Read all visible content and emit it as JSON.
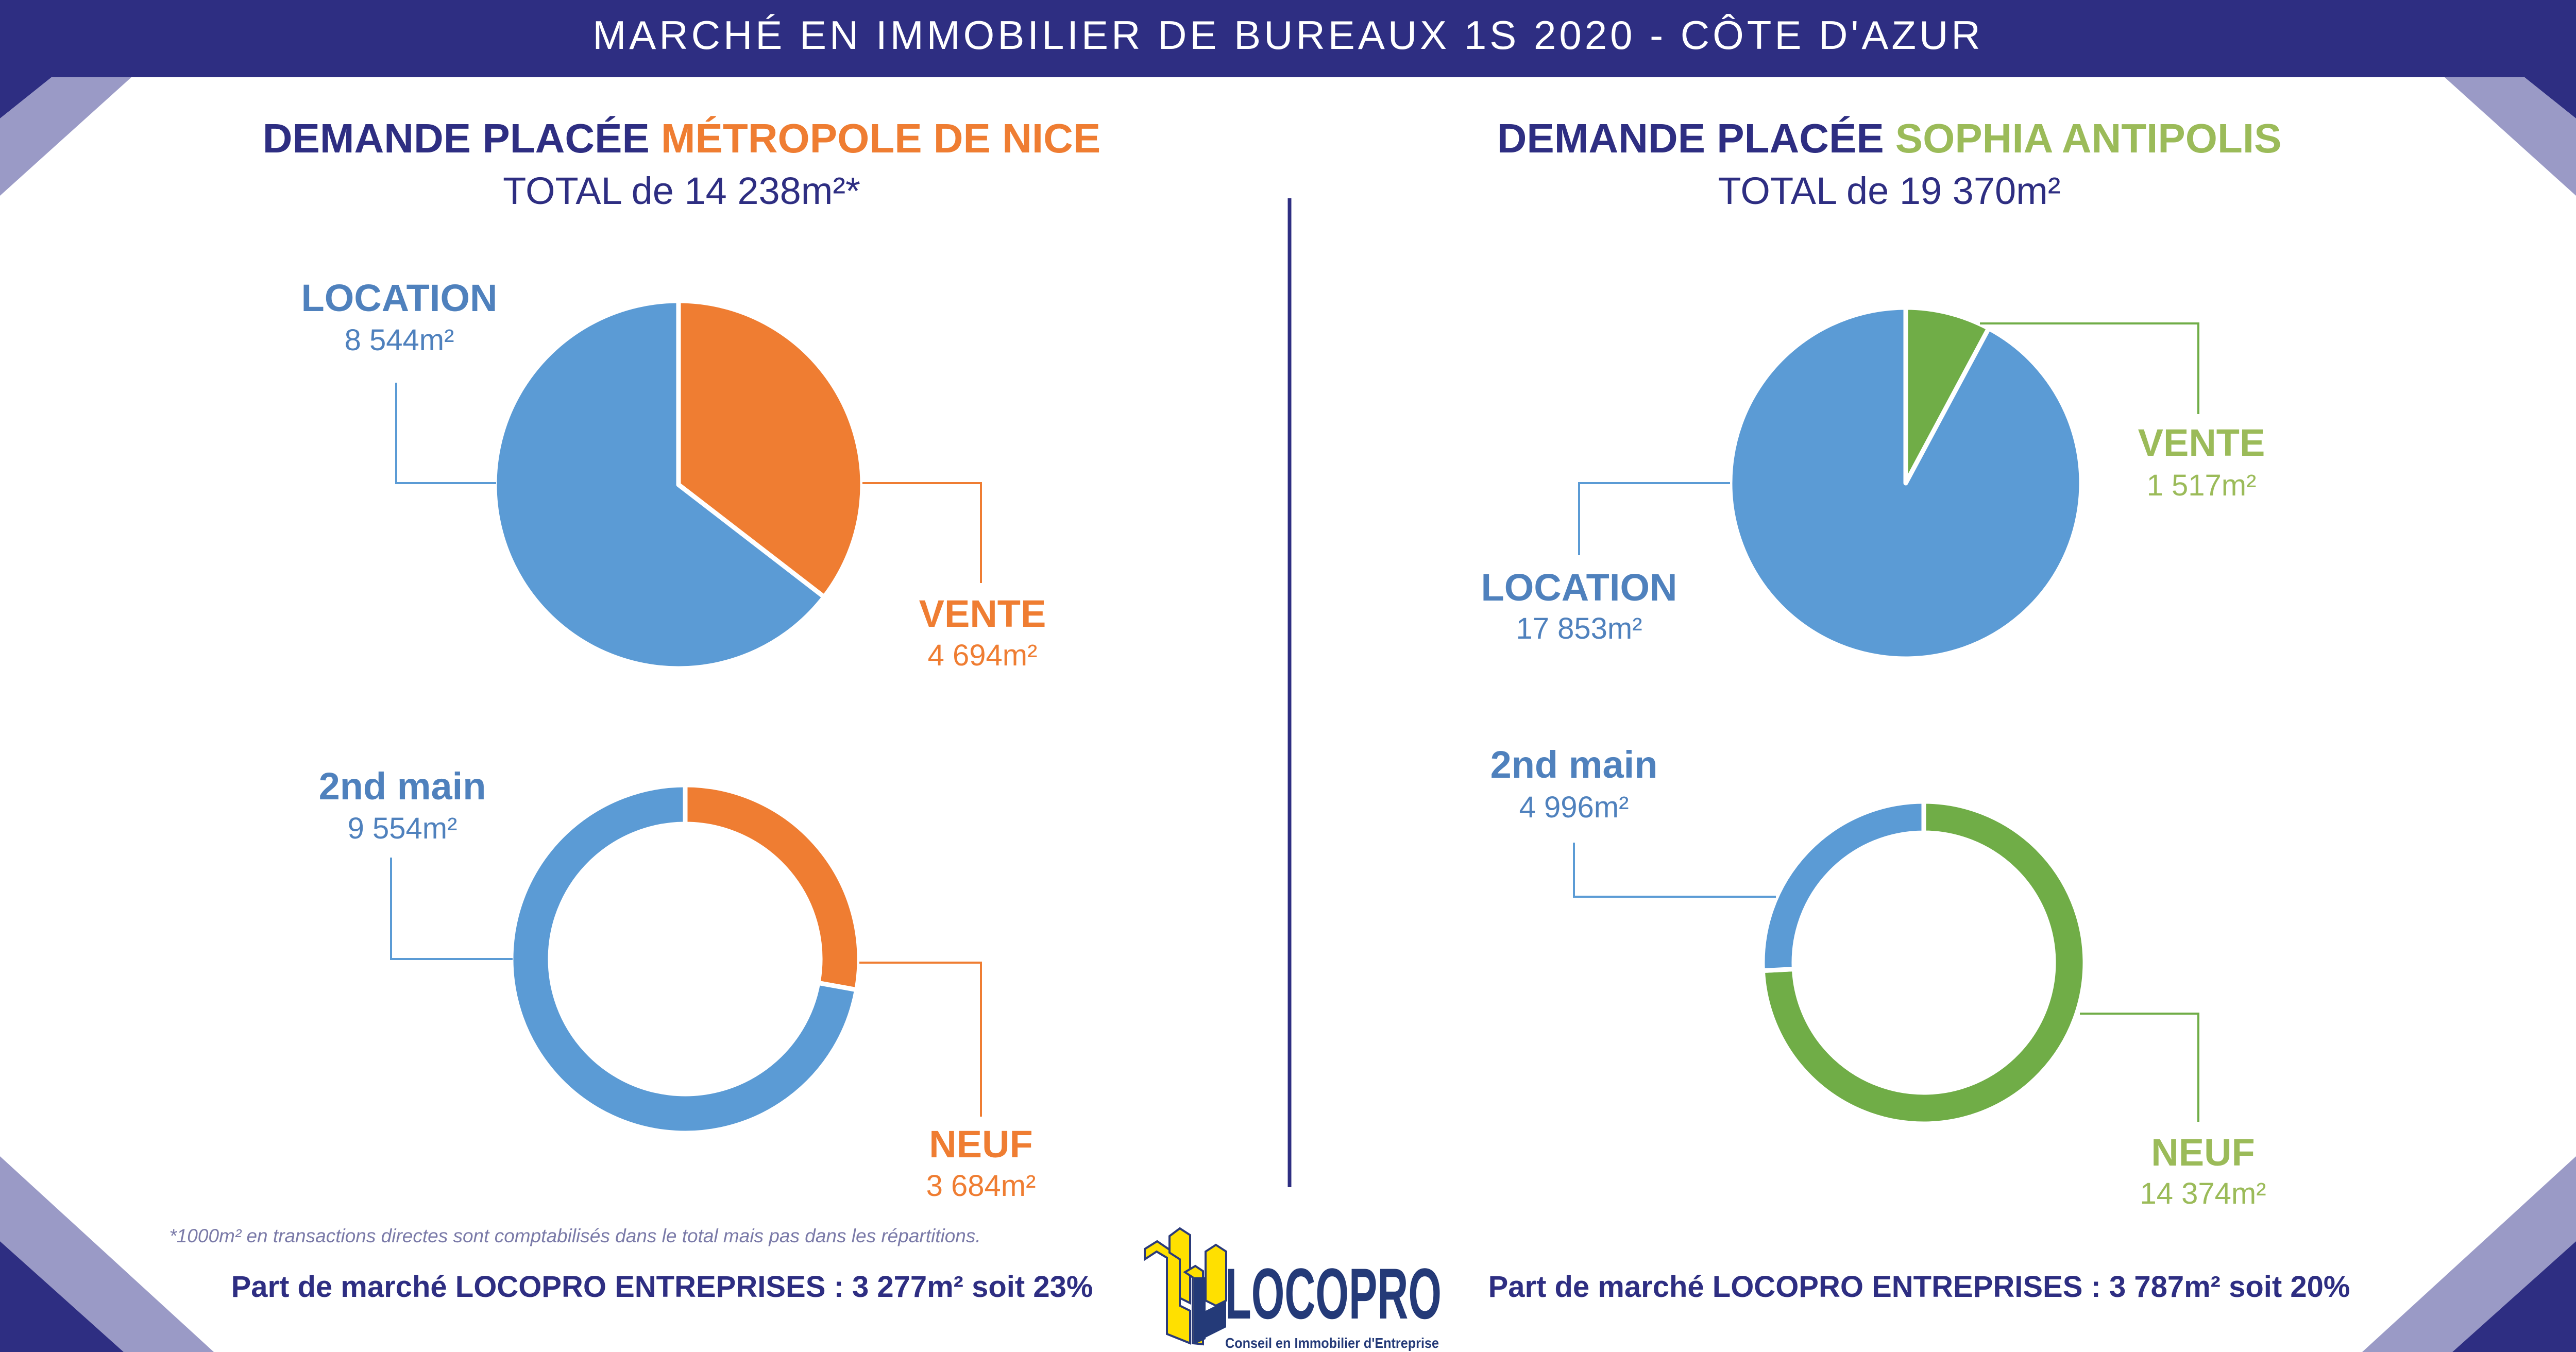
{
  "header": {
    "title": "MARCHÉ EN IMMOBILIER DE BUREAUX 1S 2020 - CÔTE D'AZUR"
  },
  "colors": {
    "navy": "#2e2e82",
    "orange": "#ef7d32",
    "blue": "#5b9bd5",
    "green": "#70ad47",
    "lime": "#9bbb59",
    "label_blue": "#4f81bd",
    "corner_light": "#9a9ac6",
    "logo_yellow": "#ffe000"
  },
  "left": {
    "heading_prefix": "DEMANDE PLACÉE",
    "heading_region": "MÉTROPOLE DE NICE",
    "total": "TOTAL de 14 238m²*",
    "footnote": "*1000m² en transactions directes sont comptabilisés dans le total mais pas dans les répartitions.",
    "market_share": "Part de marché LOCOPRO ENTREPRISES : 3 277m² soit 23%"
  },
  "right": {
    "heading_prefix": "DEMANDE PLACÉE",
    "heading_region": "SOPHIA ANTIPOLIS",
    "total": "TOTAL de 19 370m²",
    "market_share": "Part de marché LOCOPRO ENTREPRISES : 3 787m² soit 20%"
  },
  "logo": {
    "name": "LOCOPRO",
    "tagline": "Conseil en Immobilier d'Entreprise"
  },
  "chart_data": [
    {
      "type": "pie",
      "region": "Métropole de Nice",
      "categories": [
        "VENTE",
        "LOCATION"
      ],
      "values": [
        4694,
        8544
      ],
      "labels": [
        "4 694m²",
        "8 544m²"
      ],
      "colors": [
        "#ef7d32",
        "#5b9bd5"
      ]
    },
    {
      "type": "pie",
      "donut": true,
      "region": "Métropole de Nice",
      "categories": [
        "NEUF",
        "2nd main"
      ],
      "values": [
        3684,
        9554
      ],
      "labels": [
        "3 684m²",
        "9 554m²"
      ],
      "colors": [
        "#ef7d32",
        "#5b9bd5"
      ]
    },
    {
      "type": "pie",
      "region": "Sophia Antipolis",
      "categories": [
        "VENTE",
        "LOCATION"
      ],
      "values": [
        1517,
        17853
      ],
      "labels": [
        "1 517m²",
        "17 853m²"
      ],
      "colors": [
        "#70ad47",
        "#5b9bd5"
      ]
    },
    {
      "type": "pie",
      "donut": true,
      "region": "Sophia Antipolis",
      "categories": [
        "NEUF",
        "2nd main"
      ],
      "values": [
        14374,
        4996
      ],
      "labels": [
        "14 374m²",
        "4 996m²"
      ],
      "colors": [
        "#70ad47",
        "#5b9bd5"
      ]
    }
  ]
}
